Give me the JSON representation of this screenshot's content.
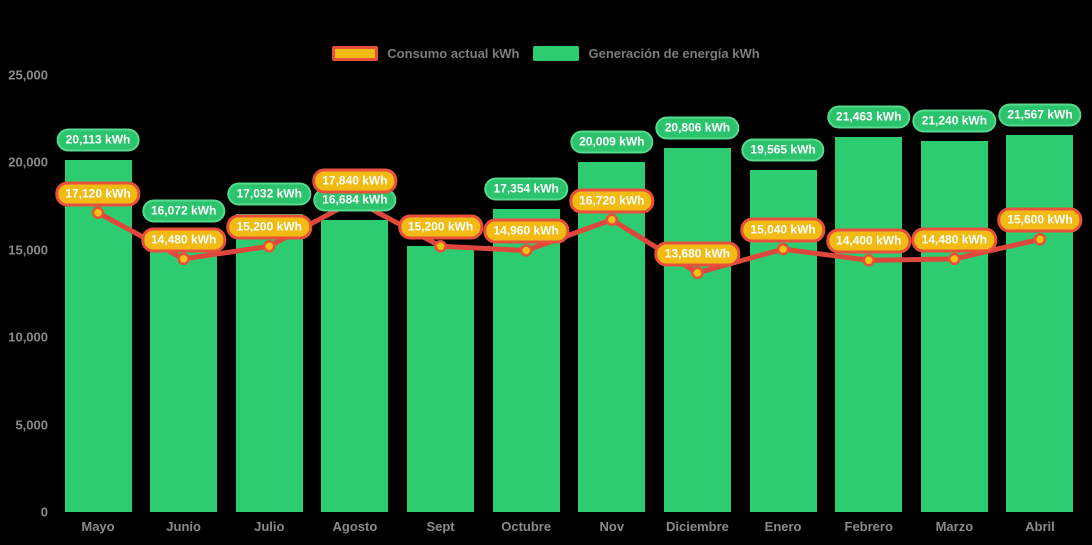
{
  "legend": {
    "items": [
      {
        "id": "consumo",
        "label": "Consumo actual kWh"
      },
      {
        "id": "generacion",
        "label": "Generación de energía kWh"
      }
    ]
  },
  "chart_data": {
    "type": "bar",
    "title": "",
    "categories": [
      "Mayo",
      "Junio",
      "Julio",
      "Agosto",
      "Sept",
      "Octubre",
      "Nov",
      "Diciembre",
      "Enero",
      "Febrero",
      "Marzo",
      "Abril"
    ],
    "series": [
      {
        "name": "Generación de energía kWh",
        "type": "bar",
        "values": [
          20113,
          16072,
          17032,
          16684,
          15200,
          17354,
          20009,
          20806,
          19565,
          21463,
          21240,
          21567
        ]
      },
      {
        "name": "Consumo actual kWh",
        "type": "line",
        "values": [
          17120,
          14480,
          15200,
          17840,
          15200,
          14960,
          16720,
          13680,
          15040,
          14400,
          14480,
          15600
        ]
      }
    ],
    "unit": "kWh",
    "y_ticks": [
      "0",
      "5,000",
      "10,000",
      "15,000",
      "20,000",
      "25,000"
    ],
    "ylim": [
      0,
      25000
    ],
    "grid": false,
    "legend_position": "top",
    "colors": {
      "background": "#000000",
      "bar": "#2ecc71",
      "bar_label_bg": "#2bc46d",
      "bar_label_border": "#56da8d",
      "line": "#e0473c",
      "point_fill": "#f5c211",
      "point_border": "#e8503c",
      "line_label_bg": "#f2bb13",
      "line_label_border": "#e8503c",
      "axis_text": "#8a8a8a",
      "legend_text": "#7d7d7d",
      "label_text": "#ffffff"
    }
  }
}
